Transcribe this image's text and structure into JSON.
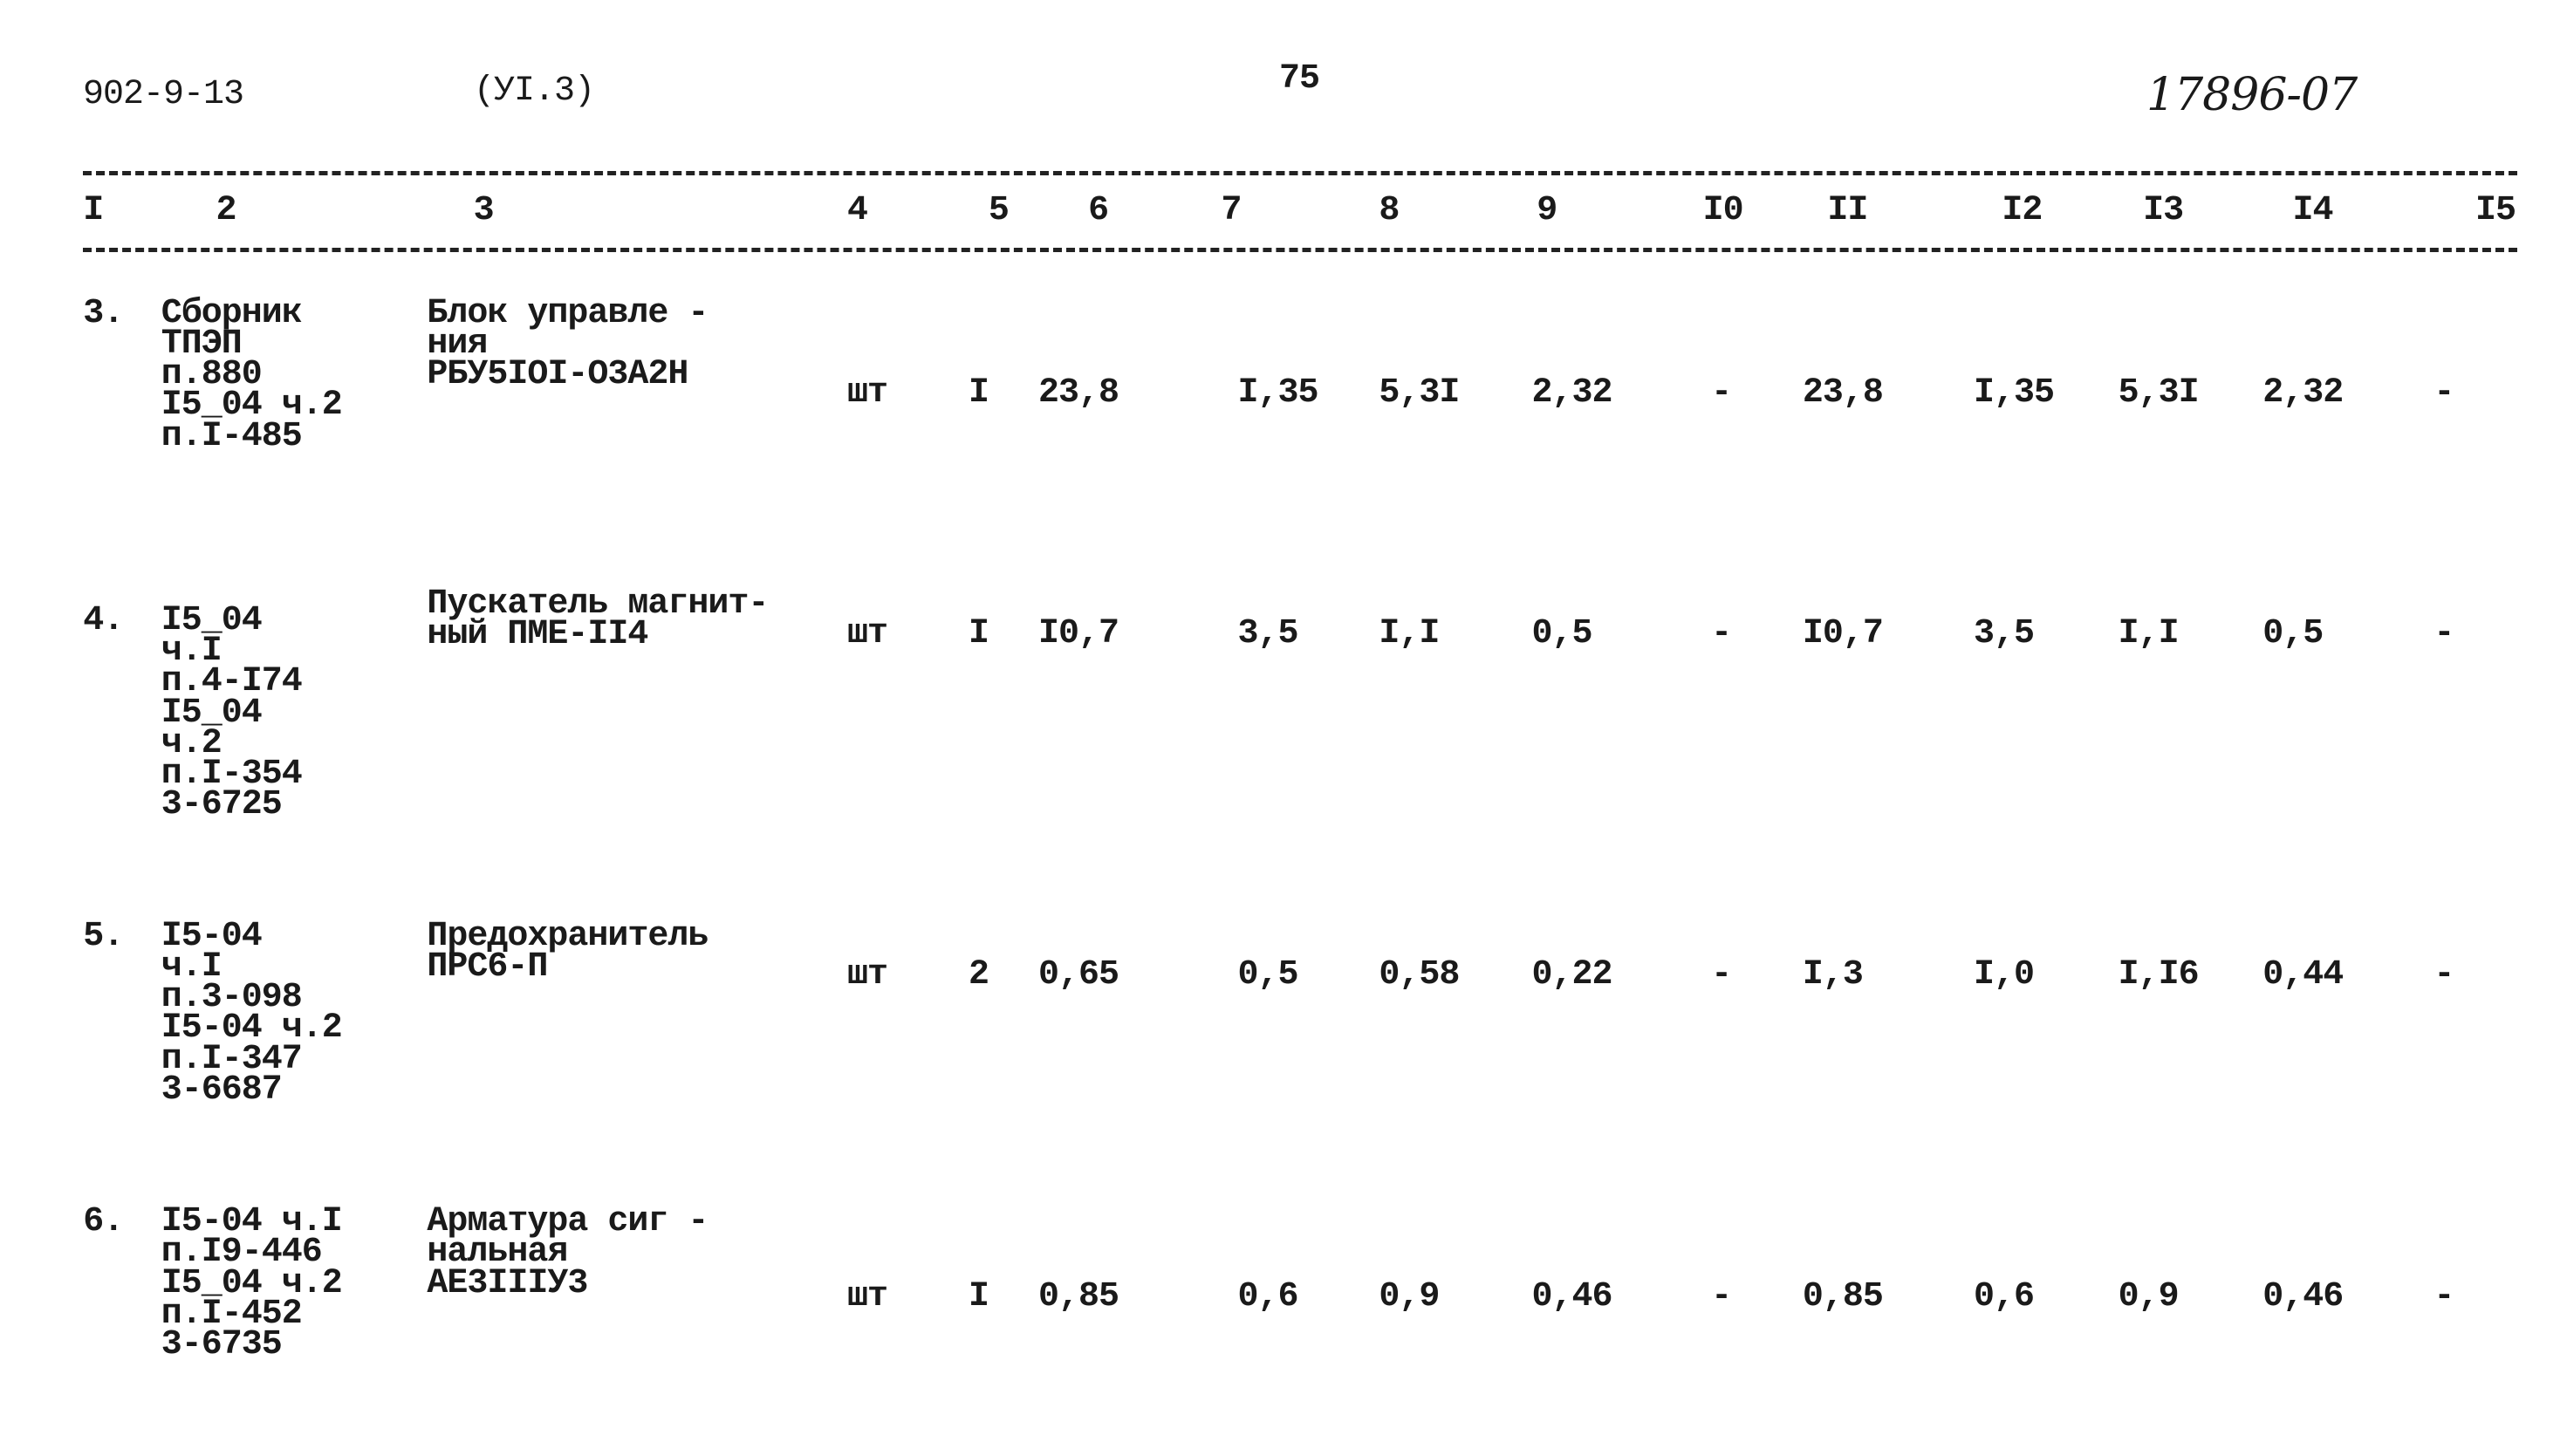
{
  "header": {
    "doc_code": "902-9-13",
    "sheet": "(УI.3)",
    "page": "75",
    "number": "17896-07"
  },
  "columns": [
    "I",
    "2",
    "3",
    "4",
    "5",
    "6",
    "7",
    "8",
    "9",
    "I0",
    "II",
    "I2",
    "I3",
    "I4",
    "I5"
  ],
  "rows": [
    {
      "num": "3.",
      "source": [
        "Сборник",
        "ТПЭП",
        "п.880",
        "I5_04 ч.2",
        "п.I-485"
      ],
      "name": [
        "Блок управле -",
        "ния",
        "РБУ5IOI-O3A2H"
      ],
      "unit": "шт",
      "values": [
        "I",
        "23,8",
        "I,35",
        "5,3I",
        "2,32",
        "-",
        "23,8",
        "I,35",
        "5,3I",
        "2,32",
        "-"
      ]
    },
    {
      "num": "4.",
      "source": [
        "I5_04",
        "ч.I",
        "п.4-I74",
        "I5_04",
        "ч.2",
        "п.I-354",
        "3-6725"
      ],
      "name": [
        "Пускатель магнит-",
        "ный ПМЕ-II4"
      ],
      "unit": "шт",
      "values": [
        "I",
        "I0,7",
        "3,5",
        "I,I",
        "0,5",
        "-",
        "I0,7",
        "3,5",
        "I,I",
        "0,5",
        "-"
      ]
    },
    {
      "num": "5.",
      "source": [
        "I5-04",
        "ч.I",
        "п.3-098",
        "I5-04 ч.2",
        "п.I-347",
        "3-6687"
      ],
      "name": [
        "Предохранитель",
        "ПРС6-П"
      ],
      "unit": "шт",
      "values": [
        "2",
        "0,65",
        "0,5",
        "0,58",
        "0,22",
        "-",
        "I,3",
        "I,0",
        "I,I6",
        "0,44",
        "-"
      ]
    },
    {
      "num": "6.",
      "source": [
        "I5-04 ч.I",
        "п.I9-446",
        "I5_04 ч.2",
        "п.I-452",
        "3-6735"
      ],
      "name": [
        "Арматура сиг -",
        "нальная",
        "АЕ3IIIУ3"
      ],
      "unit": "шт",
      "values": [
        "I",
        "0,85",
        "0,6",
        "0,9",
        "0,46",
        "-",
        "0,85",
        "0,6",
        "0,9",
        "0,46",
        "-"
      ]
    }
  ]
}
